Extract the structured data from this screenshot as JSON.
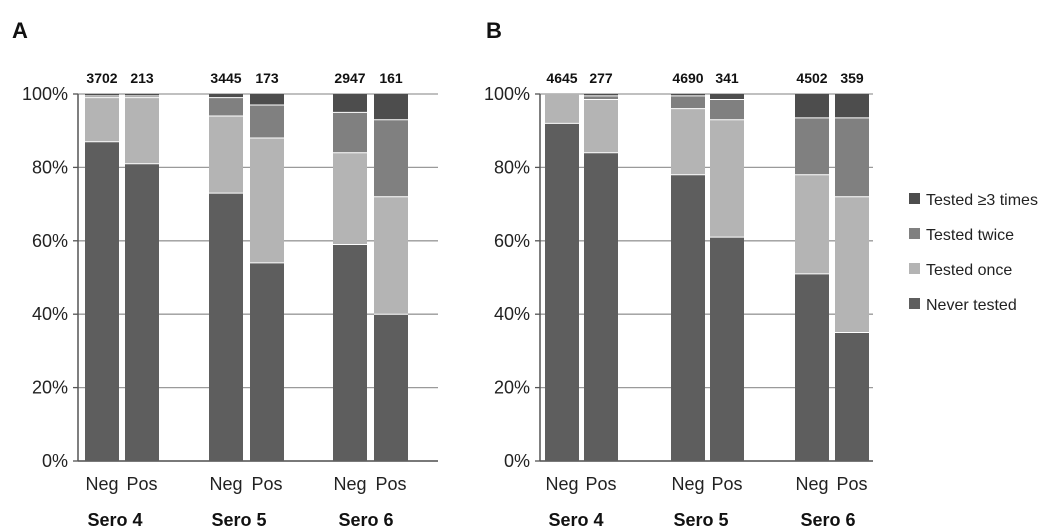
{
  "chart_data": [
    {
      "type": "bar",
      "stacked": true,
      "percent": true,
      "panel_label": "A",
      "ylim": [
        0,
        100
      ],
      "yticks": [
        "0%",
        "20%",
        "40%",
        "60%",
        "80%",
        "100%"
      ],
      "groups": [
        {
          "name": "Sero 4",
          "bars": [
            {
              "label": "Neg",
              "n": "3702",
              "values": [
                87,
                12,
                0.5,
                0.5
              ]
            },
            {
              "label": "Pos",
              "n": "213",
              "values": [
                81,
                18,
                0.5,
                0.5
              ]
            }
          ]
        },
        {
          "name": "Sero 5",
          "bars": [
            {
              "label": "Neg",
              "n": "3445",
              "values": [
                73,
                21,
                5,
                1
              ]
            },
            {
              "label": "Pos",
              "n": "173",
              "values": [
                54,
                34,
                9,
                3
              ]
            }
          ]
        },
        {
          "name": "Sero 6",
          "bars": [
            {
              "label": "Neg",
              "n": "2947",
              "values": [
                59,
                25,
                11,
                5
              ]
            },
            {
              "label": "Pos",
              "n": "161",
              "values": [
                40,
                32,
                21,
                7
              ]
            }
          ]
        }
      ]
    },
    {
      "type": "bar",
      "stacked": true,
      "percent": true,
      "panel_label": "B",
      "ylim": [
        0,
        100
      ],
      "yticks": [
        "0%",
        "20%",
        "40%",
        "60%",
        "80%",
        "100%"
      ],
      "groups": [
        {
          "name": "Sero 4",
          "bars": [
            {
              "label": "Neg",
              "n": "4645",
              "values": [
                92,
                8,
                0,
                0
              ]
            },
            {
              "label": "Pos",
              "n": "277",
              "values": [
                84,
                14.5,
                1,
                0.5
              ]
            }
          ]
        },
        {
          "name": "Sero 5",
          "bars": [
            {
              "label": "Neg",
              "n": "4690",
              "values": [
                78,
                18,
                3.5,
                0.5
              ]
            },
            {
              "label": "Pos",
              "n": "341",
              "values": [
                61,
                32,
                5.5,
                1.5
              ]
            }
          ]
        },
        {
          "name": "Sero 6",
          "bars": [
            {
              "label": "Neg",
              "n": "4502",
              "values": [
                51,
                27,
                15.5,
                6.5
              ]
            },
            {
              "label": "Pos",
              "n": "359",
              "values": [
                35,
                37,
                21.5,
                6.5
              ]
            }
          ]
        }
      ]
    }
  ],
  "legend": {
    "position": "right",
    "items": [
      {
        "label": "Tested ≥3 times",
        "color": "#4d4d4d"
      },
      {
        "label": "Tested twice",
        "color": "#808080"
      },
      {
        "label": "Tested once",
        "color": "#b4b4b4"
      },
      {
        "label": "Never tested",
        "color": "#5e5e5e"
      }
    ]
  },
  "series_order": [
    "Never tested",
    "Tested once",
    "Tested twice",
    "Tested ≥3 times"
  ],
  "series_colors": {
    "Never tested": "#5e5e5e",
    "Tested once": "#b4b4b4",
    "Tested twice": "#808080",
    "Tested ≥3 times": "#4d4d4d"
  },
  "grid": true
}
